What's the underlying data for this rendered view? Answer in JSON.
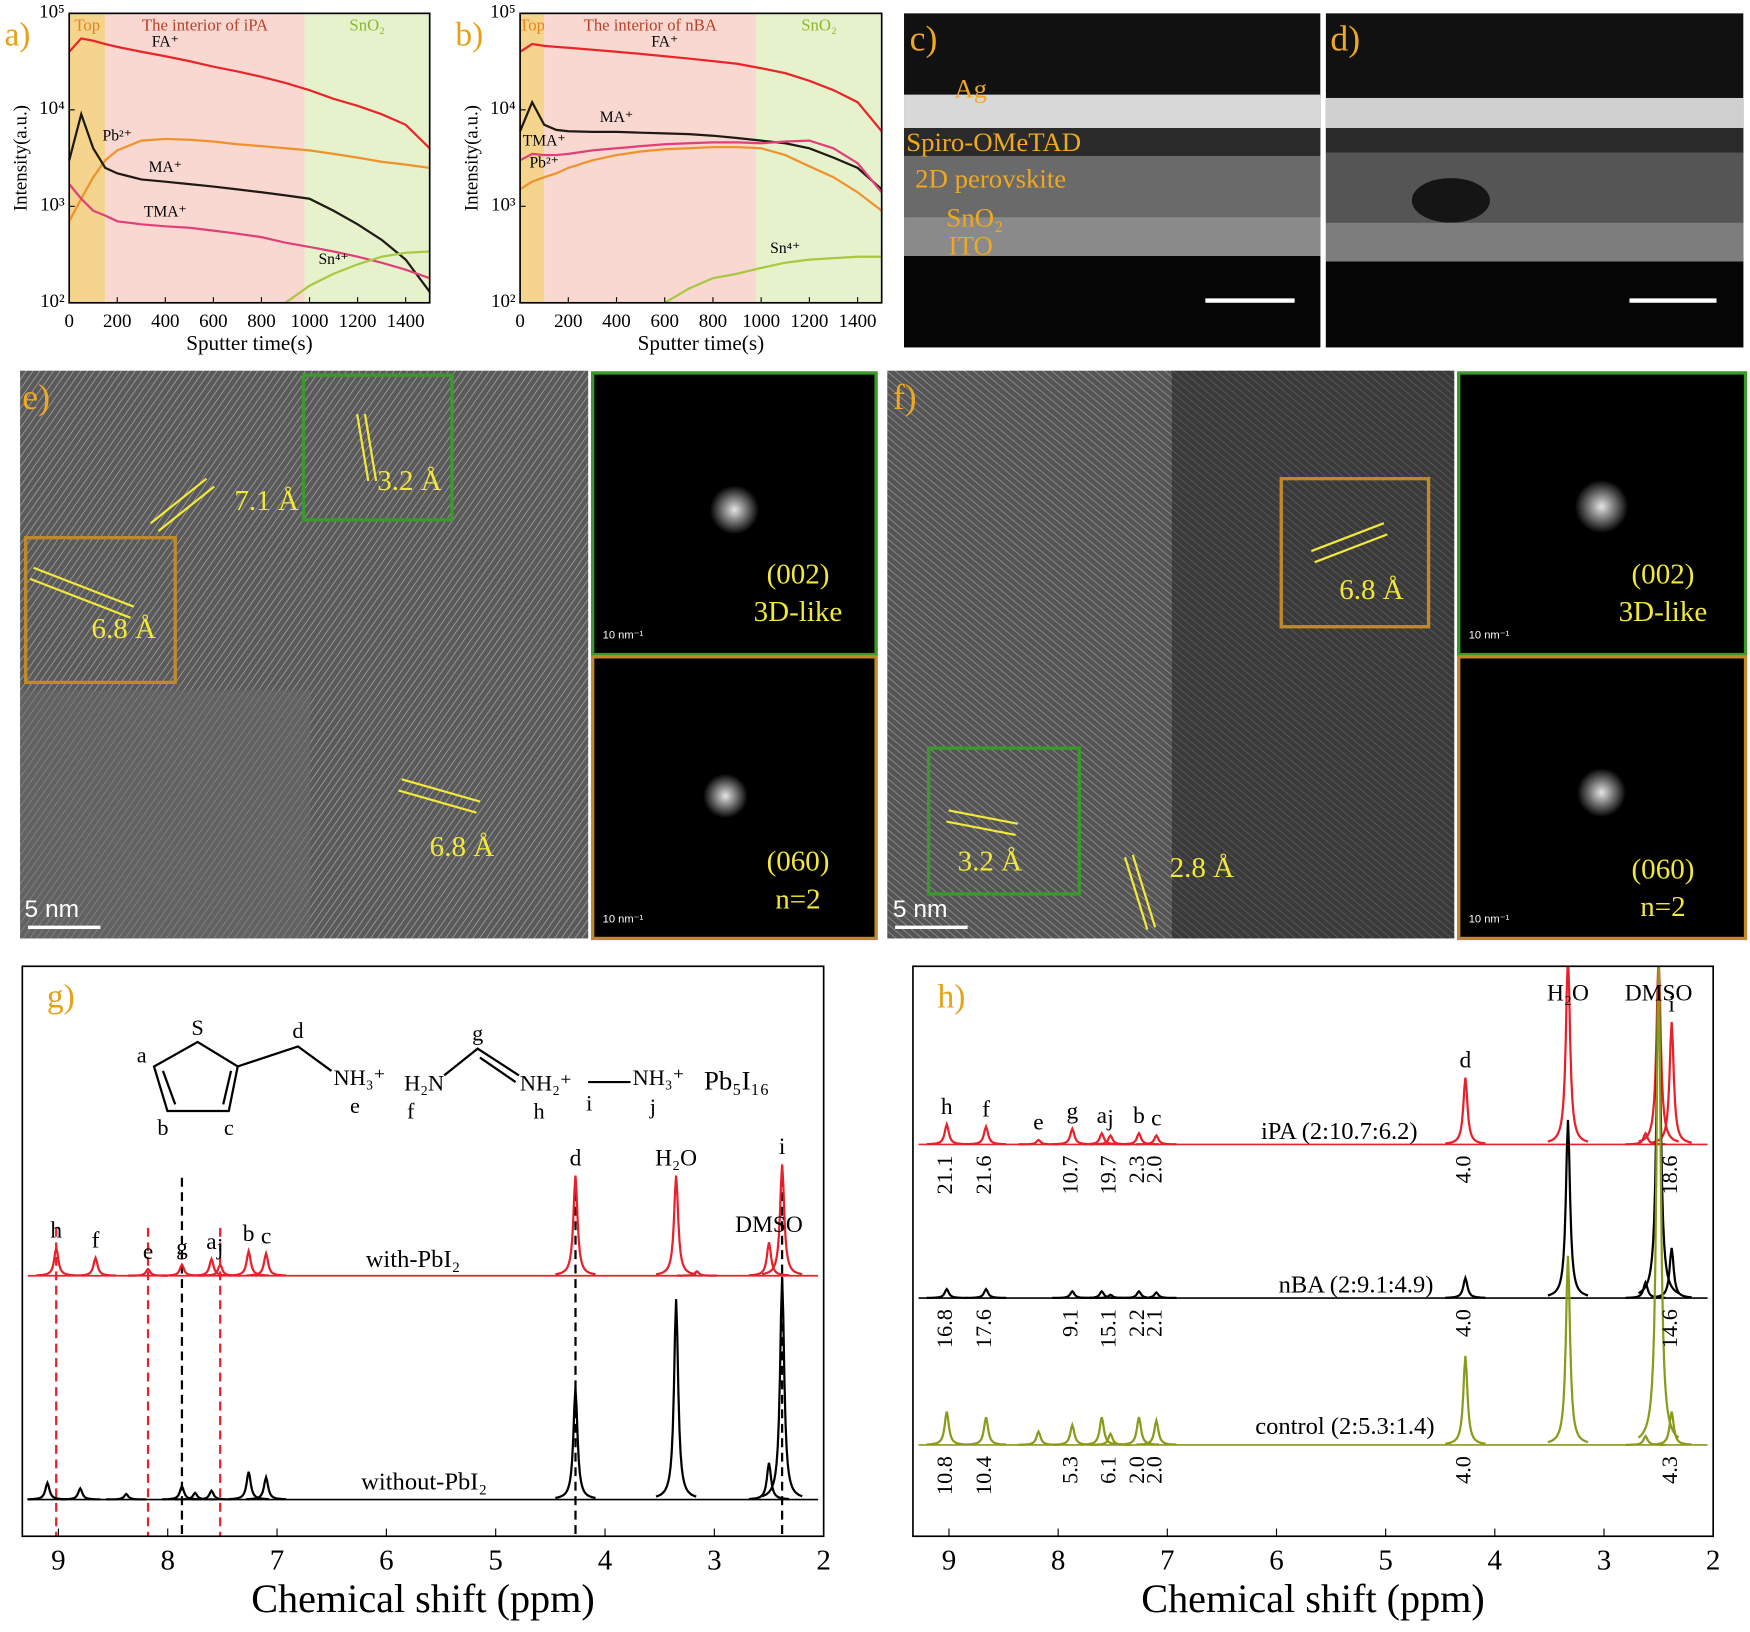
{
  "chart_data": [
    {
      "type": "line",
      "panel_label": "a)",
      "xlabel": "Sputter time(s)",
      "ylabel": "Intensity(a.u.)",
      "log_y": true,
      "xlim": [
        0,
        1500
      ],
      "ylim": [
        100,
        100000
      ],
      "xticks": [
        0,
        200,
        400,
        600,
        800,
        1000,
        1200,
        1400
      ],
      "yticks": [
        {
          "value": 100,
          "label": "10²"
        },
        {
          "value": 1000,
          "label": "10³"
        },
        {
          "value": 10000,
          "label": "10⁴"
        },
        {
          "value": 100000,
          "label": "10⁵"
        }
      ],
      "regions": [
        {
          "name": "Top",
          "from": 0,
          "to": 150,
          "color": "#f5d48e",
          "label_color": "#e5841c"
        },
        {
          "name": "The interior of iPA",
          "from": 150,
          "to": 980,
          "color": "#f8d8d0",
          "label_color": "#b8402a"
        },
        {
          "name": "SnO₂",
          "from": 980,
          "to": 1500,
          "color": "#e6f2cc",
          "label_color": "#8cb82c"
        }
      ],
      "x": [
        0,
        50,
        100,
        150,
        200,
        300,
        400,
        500,
        600,
        700,
        800,
        900,
        1000,
        1100,
        1200,
        1300,
        1400,
        1500
      ],
      "series": [
        {
          "name": "FA⁺",
          "color": "#e8262a",
          "values": [
            40000,
            55000,
            52000,
            48000,
            45000,
            40000,
            36000,
            32000,
            28000,
            25000,
            22000,
            19000,
            16000,
            13000,
            11000,
            9000,
            7000,
            4000
          ]
        },
        {
          "name": "Pb²⁺",
          "color": "#f0922b",
          "values": [
            700,
            1200,
            2000,
            3000,
            3800,
            4800,
            5000,
            4900,
            4700,
            4400,
            4200,
            4000,
            3800,
            3500,
            3200,
            2900,
            2700,
            2500
          ]
        },
        {
          "name": "MA⁺",
          "color": "#1e1a14",
          "values": [
            3000,
            9000,
            4000,
            2500,
            2200,
            1900,
            1800,
            1700,
            1600,
            1500,
            1400,
            1300,
            1200,
            900,
            650,
            450,
            280,
            130
          ]
        },
        {
          "name": "TMA⁺",
          "color": "#e0407a",
          "values": [
            1700,
            1200,
            900,
            800,
            700,
            650,
            620,
            600,
            560,
            520,
            480,
            420,
            380,
            340,
            300,
            260,
            220,
            180
          ]
        },
        {
          "name": "Sn⁴⁺",
          "color": "#a8c840",
          "values": [
            null,
            null,
            null,
            null,
            null,
            null,
            null,
            null,
            null,
            null,
            null,
            100,
            150,
            200,
            250,
            300,
            330,
            340
          ]
        }
      ]
    },
    {
      "type": "line",
      "panel_label": "b)",
      "xlabel": "Sputter time(s)",
      "ylabel": "Intensity(a.u.)",
      "log_y": true,
      "xlim": [
        0,
        1500
      ],
      "ylim": [
        100,
        100000
      ],
      "xticks": [
        0,
        200,
        400,
        600,
        800,
        1000,
        1200,
        1400
      ],
      "yticks": [
        {
          "value": 100,
          "label": "10²"
        },
        {
          "value": 1000,
          "label": "10³"
        },
        {
          "value": 10000,
          "label": "10⁴"
        },
        {
          "value": 100000,
          "label": "10⁵"
        }
      ],
      "regions": [
        {
          "name": "Top",
          "from": 0,
          "to": 100,
          "color": "#f5d48e",
          "label_color": "#e5841c"
        },
        {
          "name": "The interior of nBA",
          "from": 100,
          "to": 980,
          "color": "#f8d8d0",
          "label_color": "#b8402a"
        },
        {
          "name": "SnO₂",
          "from": 980,
          "to": 1500,
          "color": "#e6f2cc",
          "label_color": "#8cb82c"
        }
      ],
      "x": [
        0,
        50,
        100,
        150,
        200,
        300,
        400,
        500,
        600,
        700,
        800,
        900,
        1000,
        1100,
        1200,
        1300,
        1400,
        1500
      ],
      "series": [
        {
          "name": "FA⁺",
          "color": "#e8262a",
          "values": [
            40000,
            48000,
            46000,
            45000,
            44000,
            42000,
            40000,
            38000,
            36000,
            34000,
            32000,
            30000,
            27000,
            24000,
            20000,
            16000,
            12000,
            6000
          ]
        },
        {
          "name": "MA⁺",
          "color": "#1e1a14",
          "values": [
            6000,
            12000,
            7000,
            6200,
            6000,
            5900,
            5900,
            5800,
            5700,
            5600,
            5400,
            5100,
            4800,
            4500,
            4000,
            3200,
            2500,
            1500
          ]
        },
        {
          "name": "TMA⁺",
          "color": "#e0407a",
          "values": [
            3000,
            3500,
            3400,
            3400,
            3500,
            3800,
            4000,
            4200,
            4400,
            4500,
            4600,
            4600,
            4500,
            4700,
            4800,
            4000,
            2800,
            1400
          ]
        },
        {
          "name": "Pb²⁺",
          "color": "#f0922b",
          "values": [
            1500,
            1800,
            2000,
            2200,
            2500,
            3000,
            3400,
            3700,
            3900,
            4000,
            4100,
            4100,
            4000,
            3400,
            2600,
            2000,
            1400,
            900
          ]
        },
        {
          "name": "Sn⁴⁺",
          "color": "#a8c840",
          "values": [
            null,
            null,
            null,
            null,
            null,
            null,
            null,
            null,
            100,
            140,
            180,
            200,
            230,
            260,
            280,
            290,
            300,
            300
          ]
        }
      ]
    },
    {
      "type": "spectrum",
      "panel_label": "g)",
      "xlabel": "Chemical shift (ppm)",
      "xlim": [
        9.33,
        2
      ],
      "xticks": [
        9,
        8,
        7,
        6,
        5,
        4,
        3,
        2
      ],
      "reference_lines": [
        {
          "x": 9.02,
          "color": "#e8202a"
        },
        {
          "x": 8.18,
          "color": "#e8202a"
        },
        {
          "x": 7.52,
          "color": "#e8202a"
        },
        {
          "x": 7.87,
          "color": "#000000"
        },
        {
          "x": 4.27,
          "color": "#000000"
        },
        {
          "x": 2.38,
          "color": "#000000"
        }
      ],
      "series": [
        {
          "name": "with-PbI₂",
          "color": "#e8202a",
          "x": [
            9.02,
            8.66,
            8.18,
            7.87,
            7.6,
            7.52,
            7.26,
            7.1,
            4.27,
            3.35,
            3.16,
            2.5,
            2.38
          ],
          "values": [
            25,
            16,
            6,
            10,
            15,
            10,
            22,
            20,
            90,
            90,
            4,
            30,
            100
          ]
        },
        {
          "name": "without-PbI₂",
          "color": "#000000",
          "x": [
            9.1,
            8.8,
            8.38,
            7.87,
            7.75,
            7.6,
            7.26,
            7.1,
            4.27,
            3.35,
            2.5,
            2.38
          ],
          "values": [
            15,
            10,
            5,
            12,
            6,
            8,
            25,
            20,
            100,
            180,
            33,
            200
          ]
        }
      ],
      "peak_labels": [
        {
          "x": 9.02,
          "text": "h"
        },
        {
          "x": 8.66,
          "text": "f"
        },
        {
          "x": 8.18,
          "text": "e"
        },
        {
          "x": 7.87,
          "text": "g"
        },
        {
          "x": 7.6,
          "text": "a"
        },
        {
          "x": 7.52,
          "text": "j"
        },
        {
          "x": 7.26,
          "text": "b"
        },
        {
          "x": 7.1,
          "text": "c"
        },
        {
          "x": 4.27,
          "text": "d"
        },
        {
          "x": 3.35,
          "text": "H₂O"
        },
        {
          "x": 2.5,
          "text": "DMSO"
        },
        {
          "x": 2.38,
          "text": "i"
        }
      ],
      "structure_labels": [
        "S",
        "a",
        "b",
        "c",
        "d",
        "NH₃⁺",
        "e",
        "H₂N",
        "f",
        "g",
        "NH₂⁺",
        "h",
        "i",
        "NH₃⁺",
        "j",
        "Pb₅I₁₆"
      ]
    },
    {
      "type": "spectrum",
      "panel_label": "h)",
      "xlabel": "Chemical shift (ppm)",
      "xlim": [
        9.33,
        2
      ],
      "xticks": [
        9,
        8,
        7,
        6,
        5,
        4,
        3,
        2
      ],
      "series": [
        {
          "name": "iPA (2:10.7:6.2)",
          "color": "#e8202a",
          "x": [
            9.02,
            8.66,
            8.18,
            7.87,
            7.6,
            7.52,
            7.26,
            7.1,
            4.27,
            3.33,
            2.62,
            2.5,
            2.38
          ],
          "values": [
            18,
            16,
            4,
            14,
            10,
            8,
            10,
            8,
            60,
            170,
            10,
            170,
            110
          ],
          "integrals": [
            {
              "x": 9.02,
              "label": "21.1"
            },
            {
              "x": 8.66,
              "label": "21.6"
            },
            {
              "x": 7.87,
              "label": "10.7"
            },
            {
              "x": 7.52,
              "label": "19.7"
            },
            {
              "x": 7.26,
              "label": "2.3"
            },
            {
              "x": 7.1,
              "label": "2.0"
            },
            {
              "x": 4.27,
              "label": "4.0"
            },
            {
              "x": 2.38,
              "label": "18.6"
            }
          ]
        },
        {
          "name": "nBA (2:9.1:4.9)",
          "color": "#000000",
          "x": [
            9.02,
            8.66,
            7.87,
            7.6,
            7.52,
            7.26,
            7.1,
            4.27,
            3.33,
            2.62,
            2.5,
            2.38
          ],
          "values": [
            8,
            8,
            6,
            6,
            3,
            6,
            5,
            18,
            160,
            14,
            300,
            45
          ],
          "integrals": [
            {
              "x": 9.02,
              "label": "16.8"
            },
            {
              "x": 8.66,
              "label": "17.6"
            },
            {
              "x": 7.87,
              "label": "9.1"
            },
            {
              "x": 7.52,
              "label": "15.1"
            },
            {
              "x": 7.26,
              "label": "2.2"
            },
            {
              "x": 7.1,
              "label": "2.1"
            },
            {
              "x": 4.27,
              "label": "4.0"
            },
            {
              "x": 2.38,
              "label": "14.6"
            }
          ]
        },
        {
          "name": "control (2:5.3:1.4)",
          "color": "#8a9a1a",
          "x": [
            9.02,
            8.66,
            8.18,
            7.87,
            7.6,
            7.52,
            7.26,
            7.1,
            4.27,
            3.33,
            2.62,
            2.5,
            2.38
          ],
          "values": [
            30,
            25,
            12,
            18,
            25,
            10,
            25,
            22,
            80,
            170,
            8,
            450,
            30
          ],
          "integrals": [
            {
              "x": 9.02,
              "label": "10.8"
            },
            {
              "x": 8.66,
              "label": "10.4"
            },
            {
              "x": 7.87,
              "label": "5.3"
            },
            {
              "x": 7.52,
              "label": "6.1"
            },
            {
              "x": 7.26,
              "label": "2.0"
            },
            {
              "x": 7.1,
              "label": "2.0"
            },
            {
              "x": 4.27,
              "label": "4.0"
            },
            {
              "x": 2.38,
              "label": "4.3"
            }
          ]
        }
      ],
      "peak_labels": [
        {
          "x": 9.02,
          "text": "h"
        },
        {
          "x": 8.66,
          "text": "f"
        },
        {
          "x": 8.18,
          "text": "e"
        },
        {
          "x": 7.87,
          "text": "g"
        },
        {
          "x": 7.6,
          "text": "a"
        },
        {
          "x": 7.52,
          "text": "j"
        },
        {
          "x": 7.26,
          "text": "b"
        },
        {
          "x": 7.1,
          "text": "c"
        },
        {
          "x": 4.27,
          "text": "d"
        },
        {
          "x": 3.33,
          "text": "H₂O"
        },
        {
          "x": 2.5,
          "text": "DMSO"
        },
        {
          "x": 2.38,
          "text": "i"
        }
      ]
    }
  ],
  "images": [
    {
      "label": "c)",
      "texts": [
        "Ag",
        "Spiro-OMeTAD",
        "2D perovskite",
        "SnO₂",
        "ITO"
      ]
    },
    {
      "label": "d)"
    },
    {
      "label": "e)",
      "texts": [
        "7.1 Å",
        "3.2 Å",
        "6.8 Å",
        "6.8 Å",
        "5 nm"
      ],
      "insets": [
        {
          "texts": [
            "(002)",
            "3D-like"
          ],
          "scale": "10 nm⁻¹"
        },
        {
          "texts": [
            "(060)",
            "n=2"
          ],
          "scale": "10 nm⁻¹"
        }
      ]
    },
    {
      "label": "f)",
      "texts": [
        "6.8 Å",
        "3.2 Å",
        "2.8 Å",
        "5 nm"
      ],
      "insets": [
        {
          "texts": [
            "(002)",
            "3D-like"
          ],
          "scale": "10 nm⁻¹"
        },
        {
          "texts": [
            "(060)",
            "n=2"
          ],
          "scale": "10 nm⁻¹"
        }
      ]
    }
  ]
}
